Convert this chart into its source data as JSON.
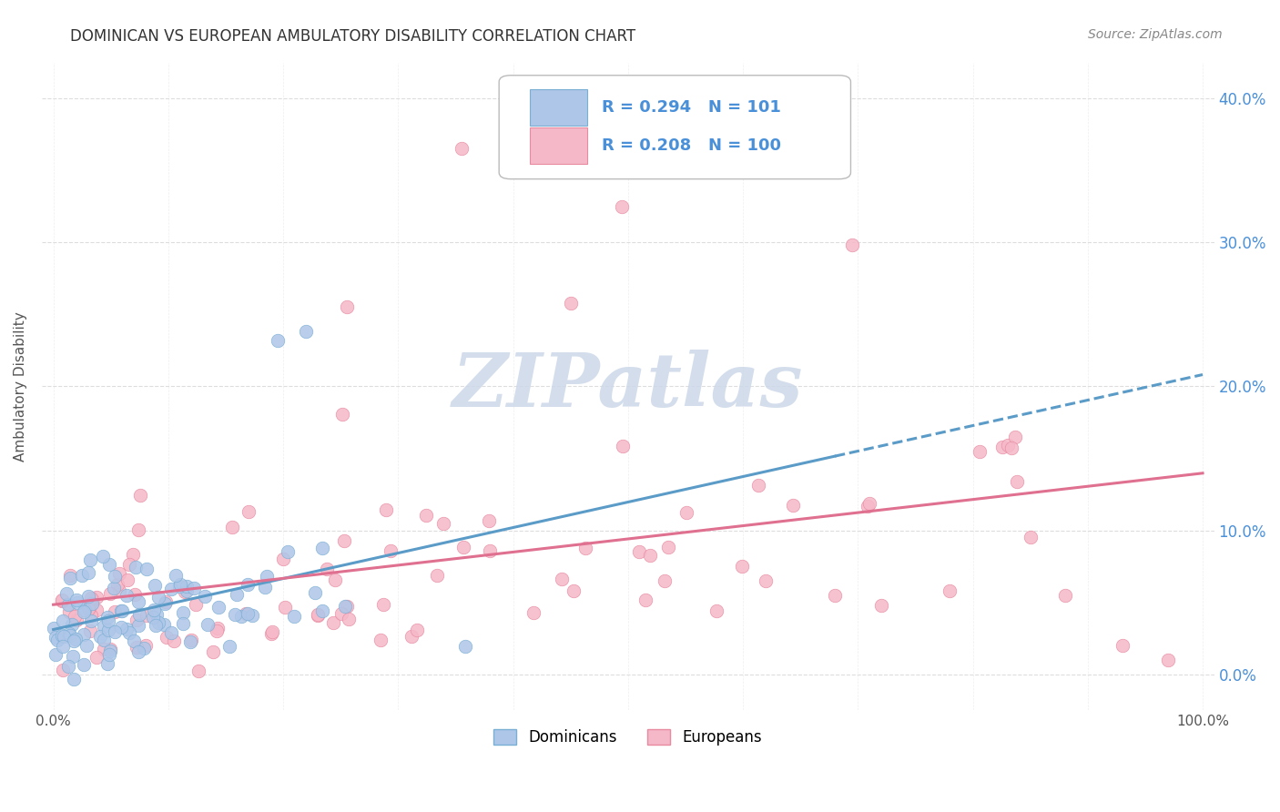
{
  "title": "DOMINICAN VS EUROPEAN AMBULATORY DISABILITY CORRELATION CHART",
  "source": "Source: ZipAtlas.com",
  "ylabel": "Ambulatory Disability",
  "watermark": "ZIPatlas",
  "dominicans": {
    "R": 0.294,
    "N": 101,
    "color": "#aec6e8",
    "edge_color": "#7aafd4",
    "line_color": "#5b9bc8",
    "label": "Dominicans"
  },
  "europeans": {
    "R": 0.208,
    "N": 100,
    "color": "#f5b8c8",
    "edge_color": "#e88aa0",
    "line_color": "#e07090",
    "label": "Europeans"
  },
  "xlim": [
    -0.01,
    1.01
  ],
  "ylim": [
    -0.025,
    0.425
  ],
  "right_yticks": [
    0.0,
    0.1,
    0.2,
    0.3,
    0.4
  ],
  "right_ytick_labels": [
    "0.0%",
    "10.0%",
    "20.0%",
    "30.0%",
    "40.0%"
  ],
  "background_color": "#ffffff",
  "grid_color": "#dddddd",
  "title_fontsize": 12,
  "source_fontsize": 10,
  "watermark_color": "#ccd8e8",
  "watermark_fontsize": 60
}
